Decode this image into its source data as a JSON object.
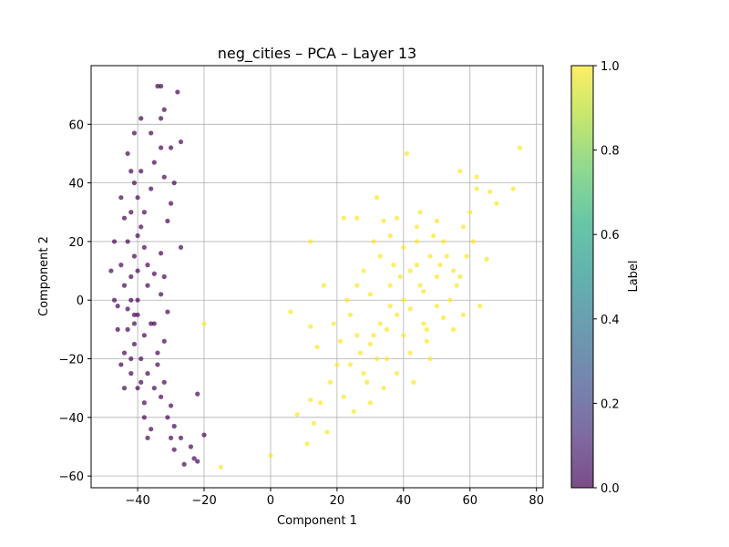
{
  "chart_data": {
    "type": "scatter",
    "title": "neg_cities – PCA – Layer 13",
    "xlabel": "Component 1",
    "ylabel": "Component 2",
    "xlim": [
      -54,
      82
    ],
    "ylim": [
      -64,
      80
    ],
    "xticks": [
      -40,
      -20,
      0,
      20,
      40,
      60,
      80
    ],
    "xtick_labels": [
      "−40",
      "−20",
      "0",
      "20",
      "40",
      "60",
      "80"
    ],
    "yticks": [
      -60,
      -40,
      -20,
      0,
      20,
      40,
      60
    ],
    "ytick_labels": [
      "−60",
      "−40",
      "−20",
      "0",
      "20",
      "40",
      "60"
    ],
    "grid": true,
    "colorbar": {
      "label": "Label",
      "range": [
        0,
        1
      ],
      "ticks": [
        "0.0",
        "0.2",
        "0.4",
        "0.6",
        "0.8",
        "1.0"
      ],
      "colormap": "viridis",
      "alpha": 0.7
    },
    "series": [
      {
        "label_value": 0,
        "color": "#440154",
        "points": [
          [
            -41,
            40
          ],
          [
            -40,
            35
          ],
          [
            -42,
            30
          ],
          [
            -39,
            25
          ],
          [
            -43,
            20
          ],
          [
            -41,
            15
          ],
          [
            -40,
            10
          ],
          [
            -44,
            5
          ],
          [
            -42,
            0
          ],
          [
            -40,
            -5
          ],
          [
            -43,
            -10
          ],
          [
            -41,
            -15
          ],
          [
            -39,
            -20
          ],
          [
            -42,
            -25
          ],
          [
            -40,
            -30
          ],
          [
            -38,
            -35
          ],
          [
            -41,
            -5
          ],
          [
            -45,
            12
          ],
          [
            -46,
            -2
          ],
          [
            -44,
            -18
          ],
          [
            -38,
            18
          ],
          [
            -37,
            5
          ],
          [
            -36,
            -8
          ],
          [
            -39,
            -28
          ],
          [
            -42,
            44
          ],
          [
            -43,
            50
          ],
          [
            -41,
            57
          ],
          [
            -39,
            62
          ],
          [
            -34,
            73
          ],
          [
            -33,
            73
          ],
          [
            -28,
            71
          ],
          [
            -33,
            62
          ],
          [
            -32,
            65
          ],
          [
            -30,
            52
          ],
          [
            -27,
            54
          ],
          [
            -32,
            42
          ],
          [
            -29,
            40
          ],
          [
            -30,
            33
          ],
          [
            -31,
            27
          ],
          [
            -33,
            16
          ],
          [
            -35,
            9
          ],
          [
            -33,
            2
          ],
          [
            -35,
            -8
          ],
          [
            -32,
            -14
          ],
          [
            -34,
            -22
          ],
          [
            -32,
            -28
          ],
          [
            -33,
            -33
          ],
          [
            -30,
            -36
          ],
          [
            -31,
            -40
          ],
          [
            -29,
            -43
          ],
          [
            -30,
            -47
          ],
          [
            -27,
            -47
          ],
          [
            -29,
            -51
          ],
          [
            -24,
            -50
          ],
          [
            -23,
            -54
          ],
          [
            -26,
            -56
          ],
          [
            -22,
            -55
          ],
          [
            -20,
            -46
          ],
          [
            -22,
            -32
          ],
          [
            -27,
            18
          ],
          [
            -47,
            20
          ],
          [
            -48,
            10
          ],
          [
            -47,
            0
          ],
          [
            -46,
            -10
          ],
          [
            -45,
            -22
          ],
          [
            -44,
            -30
          ],
          [
            -38,
            -40
          ],
          [
            -36,
            -44
          ],
          [
            -37,
            -47
          ],
          [
            -39,
            44
          ],
          [
            -38,
            30
          ],
          [
            -45,
            35
          ],
          [
            -44,
            28
          ],
          [
            -40,
            0
          ],
          [
            -41,
            -8
          ],
          [
            -42,
            8
          ],
          [
            -38,
            -12
          ],
          [
            -43,
            -3
          ],
          [
            -40,
            22
          ],
          [
            -42,
            -20
          ],
          [
            -37,
            -25
          ],
          [
            -35,
            -30
          ],
          [
            -36,
            38
          ],
          [
            -37,
            12
          ],
          [
            -34,
            -18
          ],
          [
            -31,
            -4
          ],
          [
            -32,
            8
          ],
          [
            -33,
            52
          ],
          [
            -36,
            57
          ],
          [
            -35,
            47
          ]
        ]
      },
      {
        "label_value": 1,
        "color": "#fde725",
        "points": [
          [
            40,
            0
          ],
          [
            45,
            5
          ],
          [
            38,
            -5
          ],
          [
            42,
            10
          ],
          [
            35,
            -10
          ],
          [
            48,
            15
          ],
          [
            30,
            -15
          ],
          [
            44,
            20
          ],
          [
            32,
            -20
          ],
          [
            50,
            -2
          ],
          [
            36,
            5
          ],
          [
            40,
            -12
          ],
          [
            46,
            -8
          ],
          [
            28,
            -25
          ],
          [
            34,
            -30
          ],
          [
            55,
            10
          ],
          [
            52,
            20
          ],
          [
            58,
            25
          ],
          [
            60,
            30
          ],
          [
            62,
            38
          ],
          [
            66,
            37
          ],
          [
            68,
            33
          ],
          [
            73,
            38
          ],
          [
            75,
            52
          ],
          [
            57,
            44
          ],
          [
            62,
            42
          ],
          [
            63,
            -2
          ],
          [
            58,
            -5
          ],
          [
            20,
            -22
          ],
          [
            18,
            -28
          ],
          [
            15,
            -35
          ],
          [
            12,
            -34
          ],
          [
            13,
            -42
          ],
          [
            11,
            -49
          ],
          [
            8,
            -39
          ],
          [
            6,
            -4
          ],
          [
            12,
            -9
          ],
          [
            14,
            -16
          ],
          [
            16,
            5
          ],
          [
            12,
            20
          ],
          [
            22,
            28
          ],
          [
            26,
            28
          ],
          [
            32,
            35
          ],
          [
            41,
            50
          ],
          [
            45,
            30
          ],
          [
            50,
            27
          ],
          [
            47,
            -10
          ],
          [
            38,
            -25
          ],
          [
            30,
            -35
          ],
          [
            25,
            -38
          ],
          [
            22,
            -33
          ],
          [
            17,
            -45
          ],
          [
            -20,
            -8
          ],
          [
            -15,
            -57
          ],
          [
            0,
            -53
          ],
          [
            28,
            10
          ],
          [
            33,
            15
          ],
          [
            36,
            22
          ],
          [
            30,
            2
          ],
          [
            24,
            -5
          ],
          [
            26,
            -12
          ],
          [
            42,
            -18
          ],
          [
            48,
            -20
          ],
          [
            55,
            -10
          ],
          [
            54,
            0
          ],
          [
            57,
            8
          ],
          [
            44,
            12
          ],
          [
            40,
            18
          ],
          [
            36,
            -2
          ],
          [
            42,
            -3
          ],
          [
            46,
            3
          ],
          [
            50,
            8
          ],
          [
            53,
            15
          ],
          [
            39,
            8
          ],
          [
            37,
            12
          ],
          [
            33,
            -8
          ],
          [
            31,
            -12
          ],
          [
            27,
            -18
          ],
          [
            43,
            -28
          ],
          [
            35,
            -20
          ],
          [
            29,
            -28
          ],
          [
            24,
            -22
          ],
          [
            21,
            -14
          ],
          [
            19,
            -8
          ],
          [
            23,
            0
          ],
          [
            26,
            5
          ],
          [
            31,
            20
          ],
          [
            34,
            27
          ],
          [
            38,
            28
          ],
          [
            44,
            25
          ],
          [
            49,
            22
          ],
          [
            51,
            12
          ],
          [
            56,
            5
          ],
          [
            59,
            15
          ],
          [
            61,
            20
          ],
          [
            65,
            14
          ],
          [
            47,
            -14
          ],
          [
            52,
            -6
          ]
        ]
      }
    ]
  }
}
